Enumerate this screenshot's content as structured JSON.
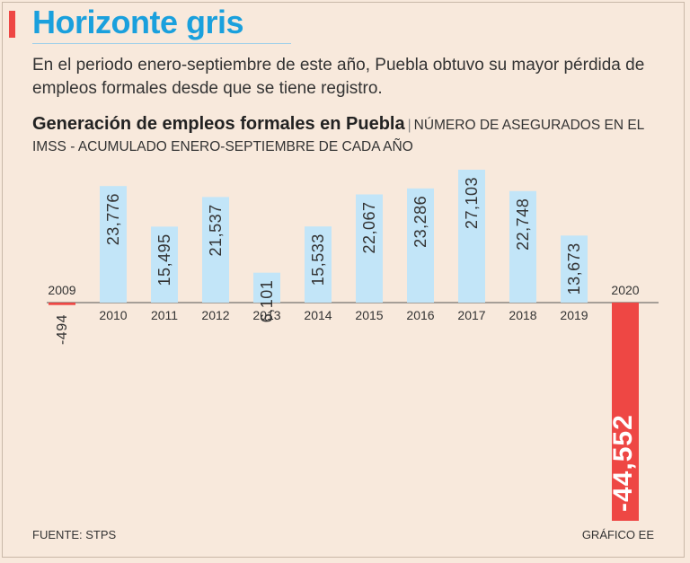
{
  "header": {
    "title": "Horizonte gris",
    "intro": "En el periodo enero-septiembre de este año, Puebla obtuvo su mayor pérdida de empleos formales desde que se tiene registro."
  },
  "footer": {
    "source": "FUENTE: STPS",
    "credit": "GRÁFICO EE"
  },
  "colors": {
    "positive": "#c2e5f8",
    "negative": "#ee4744",
    "accent": "#1aa0dd",
    "background": "#f8e9dc"
  },
  "chart_data": {
    "type": "bar",
    "title": "Generación de empleos formales en Puebla",
    "subtitle": "Número de asegurados en el IMSS - Acumulado enero-septiembre de cada año",
    "categories": [
      "2009",
      "2010",
      "2011",
      "2012",
      "2013",
      "2014",
      "2015",
      "2016",
      "2017",
      "2018",
      "2019",
      "2020"
    ],
    "values": [
      -494,
      23776,
      15495,
      21537,
      6101,
      15533,
      22067,
      23286,
      27103,
      22748,
      13673,
      -44552
    ],
    "value_labels": [
      "-494",
      "23,776",
      "15,495",
      "21,537",
      "6,101",
      "15,533",
      "22,067",
      "23,286",
      "27,103",
      "22,748",
      "13,673",
      "-44,552"
    ],
    "xlabel": "",
    "ylabel": "",
    "ylim": [
      -44552,
      27103
    ],
    "grid": false,
    "legend": "none"
  }
}
